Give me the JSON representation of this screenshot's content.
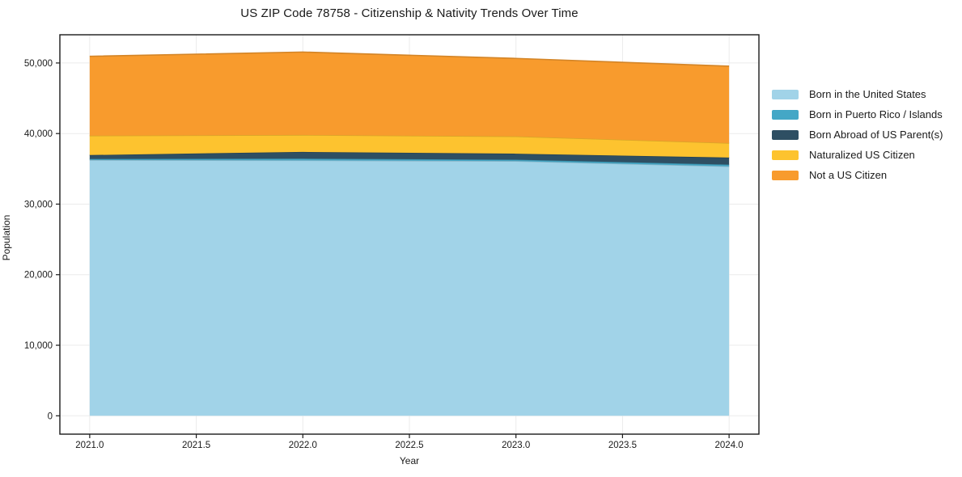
{
  "page": {
    "title": "US ZIP Code 78758 - Citizenship & Nativity Trends Over Time"
  },
  "chart_data": {
    "type": "area",
    "stacked": true,
    "title": "US ZIP Code 78758 - Citizenship & Nativity Trends Over Time",
    "xlabel": "Year",
    "ylabel": "Population",
    "x": [
      2021.0,
      2022.0,
      2023.0,
      2024.0
    ],
    "series": [
      {
        "name": "Born in the United States",
        "color": "#A1D3E8",
        "values": [
          36250,
          36200,
          36100,
          35350
        ]
      },
      {
        "name": "Born in Puerto Rico / Islands",
        "color": "#44A7C6",
        "values": [
          150,
          250,
          200,
          250
        ]
      },
      {
        "name": "Born Abroad of US Parent(s)",
        "color": "#2E4F63",
        "values": [
          550,
          950,
          850,
          1000
        ]
      },
      {
        "name": "Naturalized US Citizen",
        "color": "#FDC32F",
        "values": [
          2750,
          2400,
          2450,
          2050
        ]
      },
      {
        "name": "Not a US Citizen",
        "color": "#F89B2D",
        "values": [
          11250,
          11750,
          11050,
          10900
        ]
      }
    ],
    "totals": [
      50950,
      51550,
      50650,
      49550
    ],
    "xlim": [
      2020.86,
      2024.14
    ],
    "ylim": [
      -2600,
      54000
    ],
    "xticks": [
      2021.0,
      2021.5,
      2022.0,
      2022.5,
      2023.0,
      2023.5,
      2024.0
    ],
    "xtick_labels": [
      "2021.0",
      "2021.5",
      "2022.0",
      "2022.5",
      "2023.0",
      "2023.5",
      "2024.0"
    ],
    "yticks": [
      0,
      10000,
      20000,
      30000,
      40000,
      50000
    ],
    "ytick_labels": [
      "0",
      "10,000",
      "20,000",
      "30,000",
      "40,000",
      "50,000"
    ],
    "grid": true,
    "legend_position": "right-outside",
    "colors": {
      "grid": "#ebebeb",
      "spine": "#1a1a1a",
      "text": "#1a1a1a",
      "background": "#ffffff"
    }
  }
}
